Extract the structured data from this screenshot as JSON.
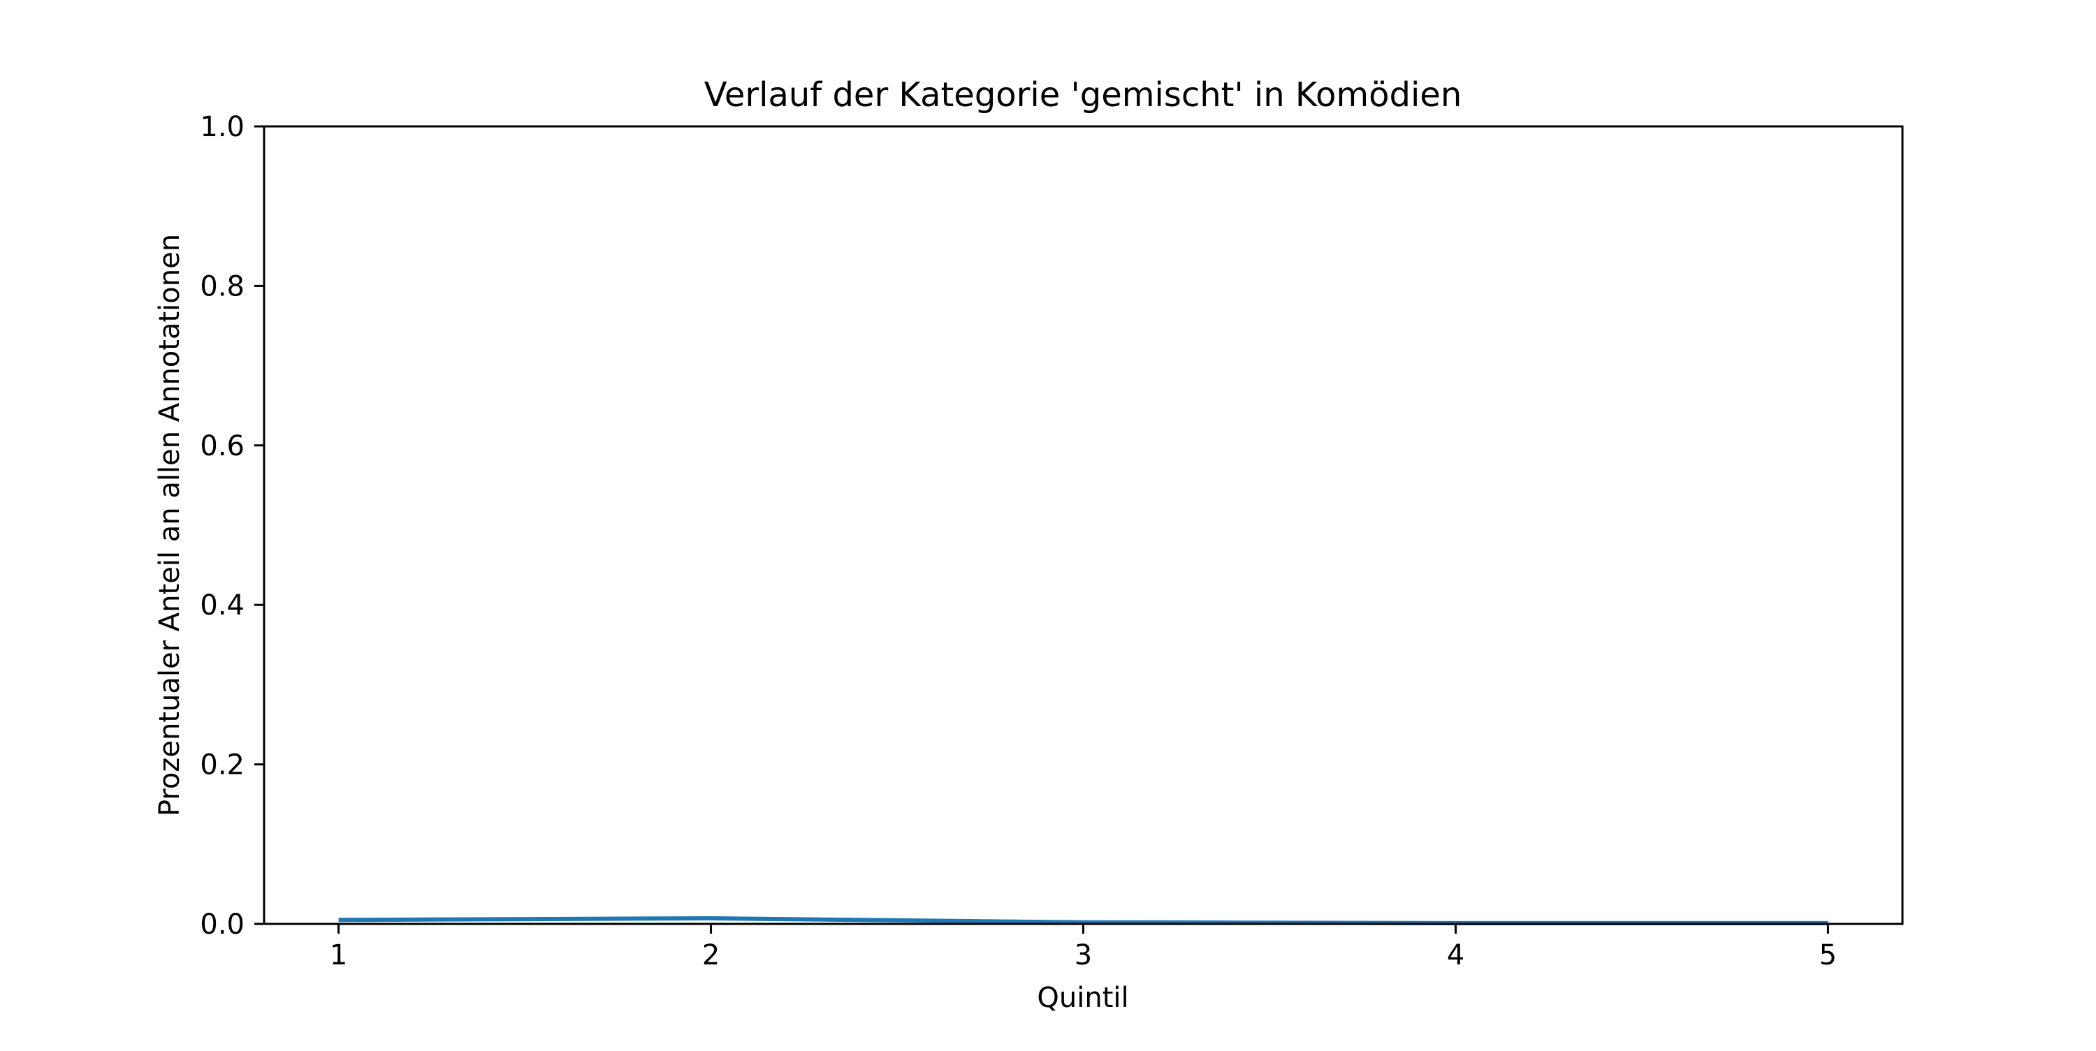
{
  "chart_data": {
    "type": "line",
    "title": "Verlauf der Kategorie 'gemischt' in Komödien",
    "xlabel": "Quintil",
    "ylabel": "Prozentualer Anteil an allen Annotationen",
    "x": [
      1,
      2,
      3,
      4,
      5
    ],
    "x_ticks": [
      "1",
      "2",
      "3",
      "4",
      "5"
    ],
    "y_ticks": [
      "0.0",
      "0.2",
      "0.4",
      "0.6",
      "0.8",
      "1.0"
    ],
    "xlim": [
      0.8,
      5.2
    ],
    "ylim": [
      0,
      1
    ],
    "grid": false,
    "series": [
      {
        "color": "#1f77b4",
        "values": [
          0.005,
          0.007,
          0.002,
          0.001,
          0.001
        ]
      }
    ]
  }
}
